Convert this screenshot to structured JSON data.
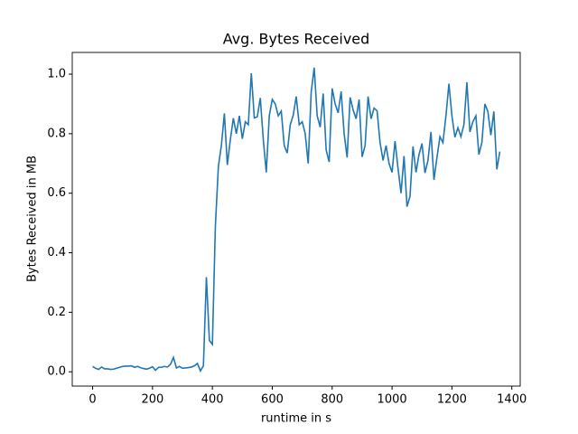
{
  "chart_data": {
    "type": "line",
    "title": "Avg. Bytes Received",
    "x_label": "runtime in s",
    "y_label": "Bytes Received in MB",
    "x": [
      0,
      10,
      20,
      30,
      40,
      50,
      60,
      70,
      80,
      90,
      100,
      110,
      120,
      130,
      140,
      150,
      160,
      170,
      180,
      190,
      200,
      210,
      220,
      230,
      240,
      250,
      260,
      270,
      280,
      290,
      300,
      310,
      320,
      330,
      340,
      350,
      360,
      370,
      380,
      390,
      400,
      410,
      420,
      430,
      440,
      450,
      460,
      470,
      480,
      490,
      500,
      510,
      520,
      530,
      540,
      550,
      560,
      570,
      580,
      590,
      600,
      610,
      620,
      630,
      640,
      650,
      660,
      670,
      680,
      690,
      700,
      710,
      720,
      730,
      740,
      750,
      760,
      770,
      780,
      790,
      800,
      810,
      820,
      830,
      840,
      850,
      860,
      870,
      880,
      890,
      900,
      910,
      920,
      930,
      940,
      950,
      960,
      970,
      980,
      990,
      1000,
      1010,
      1020,
      1030,
      1040,
      1050,
      1060,
      1070,
      1080,
      1090,
      1100,
      1110,
      1120,
      1130,
      1140,
      1150,
      1160,
      1170,
      1180,
      1190,
      1200,
      1210,
      1220,
      1230,
      1240,
      1250,
      1260,
      1270,
      1280,
      1290,
      1300,
      1310,
      1320,
      1330,
      1340,
      1350,
      1360
    ],
    "series": [
      {
        "color": "#1f77b4",
        "values": [
          0.018,
          0.012,
          0.008,
          0.016,
          0.01,
          0.01,
          0.008,
          0.009,
          0.012,
          0.015,
          0.018,
          0.019,
          0.019,
          0.02,
          0.015,
          0.018,
          0.014,
          0.011,
          0.009,
          0.012,
          0.017,
          0.005,
          0.015,
          0.015,
          0.018,
          0.016,
          0.025,
          0.048,
          0.013,
          0.018,
          0.012,
          0.013,
          0.014,
          0.016,
          0.02,
          0.028,
          0.003,
          0.02,
          0.318,
          0.105,
          0.092,
          0.49,
          0.69,
          0.76,
          0.868,
          0.695,
          0.78,
          0.852,
          0.8,
          0.86,
          0.783,
          0.84,
          0.83,
          1.003,
          0.853,
          0.857,
          0.92,
          0.78,
          0.67,
          0.86,
          0.915,
          0.9,
          0.86,
          0.876,
          0.76,
          0.735,
          0.83,
          0.862,
          0.925,
          0.83,
          0.84,
          0.8,
          0.7,
          0.94,
          1.022,
          0.86,
          0.822,
          0.935,
          0.745,
          0.705,
          0.952,
          0.9,
          0.87,
          0.942,
          0.8,
          0.72,
          0.922,
          0.88,
          0.85,
          0.915,
          0.722,
          0.76,
          0.925,
          0.85,
          0.886,
          0.877,
          0.77,
          0.71,
          0.76,
          0.7,
          0.67,
          0.775,
          0.683,
          0.6,
          0.725,
          0.555,
          0.59,
          0.757,
          0.67,
          0.73,
          0.767,
          0.668,
          0.71,
          0.806,
          0.645,
          0.72,
          0.79,
          0.77,
          0.86,
          0.968,
          0.86,
          0.788,
          0.82,
          0.79,
          0.83,
          0.973,
          0.806,
          0.84,
          0.86,
          0.73,
          0.77,
          0.9,
          0.875,
          0.795,
          0.875,
          0.68,
          0.74
        ]
      }
    ],
    "xlim": [
      -68,
      1428
    ],
    "ylim": [
      -0.048,
      1.073
    ],
    "xticks": [
      0,
      200,
      400,
      600,
      800,
      1000,
      1200,
      1400
    ],
    "yticks": [
      {
        "value": 0,
        "label": "0.0"
      },
      {
        "value": 0.2,
        "label": "0.2"
      },
      {
        "value": 0.4,
        "label": "0.4"
      },
      {
        "value": 0.6,
        "label": "0.6"
      },
      {
        "value": 0.8,
        "label": "0.8"
      },
      {
        "value": 1,
        "label": "1.0"
      }
    ]
  }
}
